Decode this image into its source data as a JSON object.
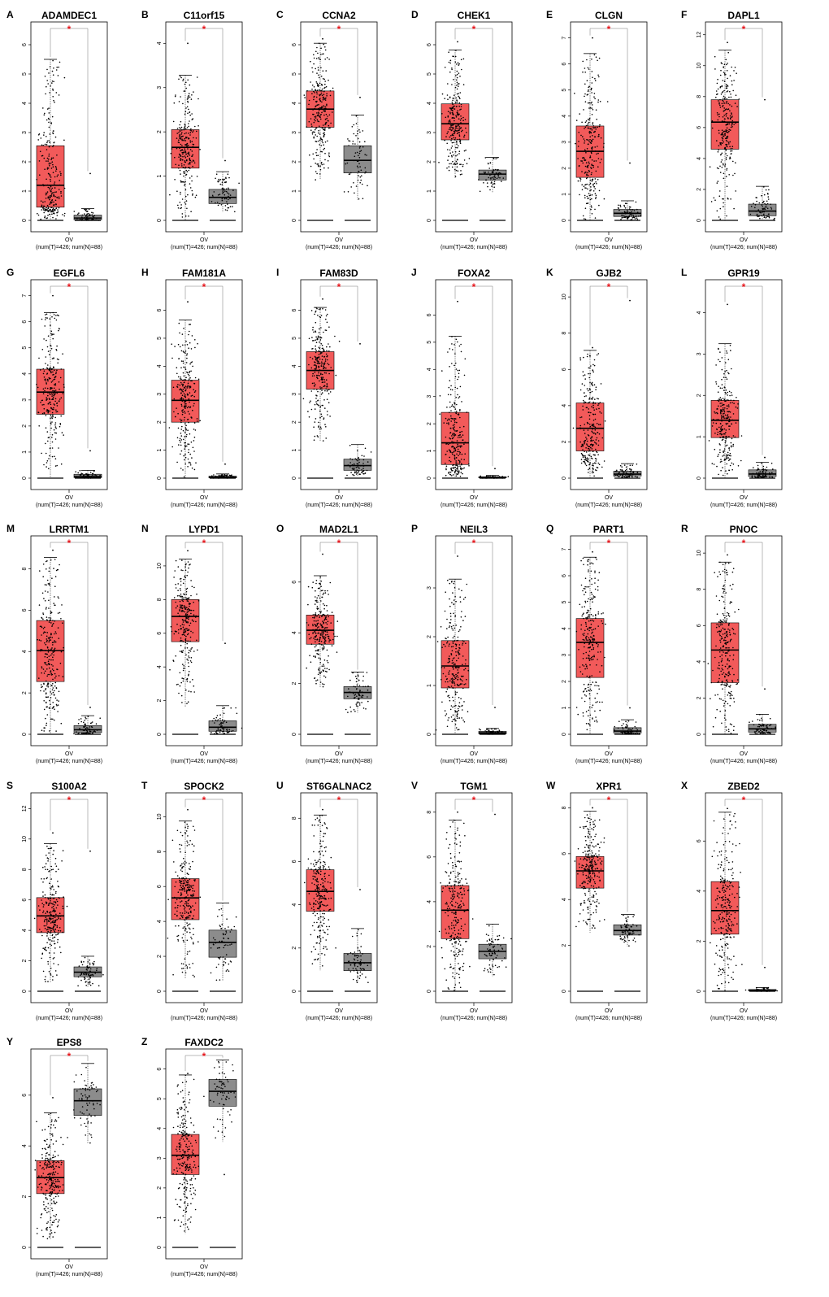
{
  "colors": {
    "tumor": "#f25a5a",
    "normal": "#8c8c8c",
    "significance": "#e8151b",
    "axis": "#000000",
    "point": "#000000"
  },
  "figure": {
    "x_group_label": "OV",
    "x_count_label": "(num(T)=426; num(N)=88)",
    "significance_mark": "*"
  },
  "chart_data": [
    {
      "type": "box",
      "panel": "A",
      "title": "ADAMDEC1",
      "ylim": [
        0,
        6.5
      ],
      "yticks": [
        0,
        1,
        2,
        3,
        4,
        5,
        6
      ],
      "tumor": {
        "min": 0,
        "q1": 0.45,
        "median": 1.2,
        "q3": 2.55,
        "whisker_high": 5.5
      },
      "normal": {
        "min": 0,
        "q1": 0.02,
        "median": 0.08,
        "q3": 0.18,
        "whisker_high": 0.4,
        "outlier_max": 1.6
      }
    },
    {
      "type": "box",
      "panel": "B",
      "title": "C11orf15",
      "ylim": [
        0,
        4.3
      ],
      "yticks": [
        0,
        1,
        2,
        3,
        4
      ],
      "tumor": {
        "min": 0,
        "q1": 1.18,
        "median": 1.65,
        "q3": 2.05,
        "whisker_high": 3.28,
        "outlier_max": 4.0
      },
      "normal": {
        "min": 0.18,
        "q1": 0.38,
        "median": 0.52,
        "q3": 0.7,
        "whisker_high": 1.1,
        "outlier_max": 1.35
      }
    },
    {
      "type": "box",
      "panel": "C",
      "title": "CCNA2",
      "ylim": [
        0,
        6.5
      ],
      "yticks": [
        0,
        1,
        2,
        3,
        4,
        5,
        6
      ],
      "tumor": {
        "min": 1.38,
        "q1": 3.18,
        "median": 3.8,
        "q3": 4.42,
        "whisker_high": 6.05,
        "outlier_max": 6.2
      },
      "normal": {
        "min": 0.7,
        "q1": 1.62,
        "median": 2.05,
        "q3": 2.55,
        "whisker_high": 3.6,
        "outlier_max": 4.2
      }
    },
    {
      "type": "box",
      "panel": "D",
      "title": "CHEK1",
      "ylim": [
        0,
        6.5
      ],
      "yticks": [
        0,
        1,
        2,
        3,
        4,
        5,
        6
      ],
      "tumor": {
        "min": 1.45,
        "q1": 2.75,
        "median": 3.3,
        "q3": 3.98,
        "whisker_high": 5.82,
        "outlier_max": 6.1
      },
      "normal": {
        "min": 0.95,
        "q1": 1.38,
        "median": 1.58,
        "q3": 1.72,
        "whisker_high": 2.15
      }
    },
    {
      "type": "box",
      "panel": "E",
      "title": "CLGN",
      "ylim": [
        0,
        7.3
      ],
      "yticks": [
        0,
        1,
        2,
        3,
        4,
        5,
        6,
        7
      ],
      "tumor": {
        "min": 0,
        "q1": 1.65,
        "median": 2.65,
        "q3": 3.62,
        "whisker_high": 6.4,
        "outlier_max": 7.0
      },
      "normal": {
        "min": 0.02,
        "q1": 0.15,
        "median": 0.27,
        "q3": 0.42,
        "whisker_high": 0.75,
        "outlier_max": 2.2
      }
    },
    {
      "type": "box",
      "panel": "F",
      "title": "DAPL1",
      "ylim": [
        0,
        12.3
      ],
      "yticks": [
        0,
        2,
        4,
        6,
        8,
        10,
        12
      ],
      "tumor": {
        "min": 0,
        "q1": 4.6,
        "median": 6.35,
        "q3": 7.8,
        "whisker_high": 11.0,
        "outlier_max": 11.5
      },
      "normal": {
        "min": 0.05,
        "q1": 0.3,
        "median": 0.6,
        "q3": 1.05,
        "whisker_high": 2.2,
        "outlier_max": 7.8
      }
    },
    {
      "type": "box",
      "panel": "G",
      "title": "EGFL6",
      "ylim": [
        0,
        7.3
      ],
      "yticks": [
        0,
        1,
        2,
        3,
        4,
        5,
        6,
        7
      ],
      "tumor": {
        "min": 0,
        "q1": 2.45,
        "median": 3.3,
        "q3": 4.18,
        "whisker_high": 6.35,
        "outlier_max": 7.0
      },
      "normal": {
        "min": 0,
        "q1": 0.02,
        "median": 0.06,
        "q3": 0.15,
        "whisker_high": 0.3,
        "outlier_max": 1.05
      }
    },
    {
      "type": "box",
      "panel": "H",
      "title": "FAM181A",
      "ylim": [
        0,
        6.8
      ],
      "yticks": [
        0,
        1,
        2,
        3,
        4,
        5,
        6
      ],
      "tumor": {
        "min": 0,
        "q1": 2.0,
        "median": 2.78,
        "q3": 3.5,
        "whisker_high": 5.65,
        "outlier_max": 6.3
      },
      "normal": {
        "min": 0,
        "q1": 0.01,
        "median": 0.03,
        "q3": 0.07,
        "whisker_high": 0.15,
        "outlier_max": 0.5
      }
    },
    {
      "type": "box",
      "panel": "I",
      "title": "FAM83D",
      "ylim": [
        0,
        6.8
      ],
      "yticks": [
        0,
        1,
        2,
        3,
        4,
        5,
        6
      ],
      "tumor": {
        "min": 1.3,
        "q1": 3.18,
        "median": 3.85,
        "q3": 4.52,
        "whisker_high": 6.1,
        "outlier_max": 6.4
      },
      "normal": {
        "min": 0.05,
        "q1": 0.28,
        "median": 0.45,
        "q3": 0.68,
        "whisker_high": 1.2,
        "outlier_max": 4.8
      }
    },
    {
      "type": "box",
      "panel": "J",
      "title": "FOXA2",
      "ylim": [
        0,
        7.0
      ],
      "yticks": [
        0,
        1,
        2,
        3,
        4,
        5,
        6
      ],
      "tumor": {
        "min": 0,
        "q1": 0.5,
        "median": 1.3,
        "q3": 2.42,
        "whisker_high": 5.22,
        "outlier_max": 6.5
      },
      "normal": {
        "min": 0,
        "q1": 0.01,
        "median": 0.03,
        "q3": 0.05,
        "whisker_high": 0.1,
        "outlier_max": 0.35
      }
    },
    {
      "type": "box",
      "panel": "K",
      "title": "GJB2",
      "ylim": [
        0,
        10.5
      ],
      "yticks": [
        0,
        2,
        4,
        6,
        8,
        10
      ],
      "tumor": {
        "min": 0,
        "q1": 1.5,
        "median": 2.75,
        "q3": 4.15,
        "whisker_high": 7.05,
        "outlier_max": 7.2
      },
      "normal": {
        "min": 0.02,
        "q1": 0.12,
        "median": 0.22,
        "q3": 0.38,
        "whisker_high": 0.8,
        "outlier_max": 9.8
      }
    },
    {
      "type": "box",
      "panel": "L",
      "title": "GPR19",
      "ylim": [
        0,
        4.6
      ],
      "yticks": [
        0,
        1,
        2,
        3,
        4
      ],
      "tumor": {
        "min": 0,
        "q1": 0.98,
        "median": 1.4,
        "q3": 1.88,
        "whisker_high": 3.25,
        "outlier_max": 4.2
      },
      "normal": {
        "min": 0,
        "q1": 0.04,
        "median": 0.1,
        "q3": 0.2,
        "whisker_high": 0.38,
        "outlier_max": 0.5
      }
    },
    {
      "type": "box",
      "panel": "M",
      "title": "LRRTM1",
      "ylim": [
        0,
        9.2
      ],
      "yticks": [
        0,
        2,
        4,
        6,
        8
      ],
      "tumor": {
        "min": 0,
        "q1": 2.55,
        "median": 4.05,
        "q3": 5.5,
        "whisker_high": 8.55,
        "outlier_max": 8.9
      },
      "normal": {
        "min": 0,
        "q1": 0.08,
        "median": 0.22,
        "q3": 0.42,
        "whisker_high": 0.9,
        "outlier_max": 1.3
      }
    },
    {
      "type": "box",
      "panel": "N",
      "title": "LYPD1",
      "ylim": [
        0,
        11.3
      ],
      "yticks": [
        0,
        2,
        4,
        6,
        8,
        10
      ],
      "tumor": {
        "min": 1.6,
        "q1": 5.5,
        "median": 7.0,
        "q3": 8.0,
        "whisker_high": 10.4,
        "outlier_max": 10.9
      },
      "normal": {
        "min": 0,
        "q1": 0.18,
        "median": 0.42,
        "q3": 0.8,
        "whisker_high": 1.7,
        "outlier_max": 5.4
      }
    },
    {
      "type": "box",
      "panel": "O",
      "title": "MAD2L1",
      "ylim": [
        0,
        7.5
      ],
      "yticks": [
        0,
        2,
        4,
        6
      ],
      "tumor": {
        "min": 1.85,
        "q1": 3.55,
        "median": 4.1,
        "q3": 4.7,
        "whisker_high": 6.25,
        "outlier_max": 7.1
      },
      "normal": {
        "min": 0.85,
        "q1": 1.4,
        "median": 1.65,
        "q3": 1.88,
        "whisker_high": 2.45
      }
    },
    {
      "type": "box",
      "panel": "P",
      "title": "NEIL3",
      "ylim": [
        0,
        3.9
      ],
      "yticks": [
        0,
        1,
        2,
        3
      ],
      "tumor": {
        "min": 0,
        "q1": 0.95,
        "median": 1.4,
        "q3": 1.92,
        "whisker_high": 3.18,
        "outlier_max": 3.65
      },
      "normal": {
        "min": 0,
        "q1": 0.01,
        "median": 0.03,
        "q3": 0.06,
        "whisker_high": 0.12,
        "outlier_max": 0.55
      }
    },
    {
      "type": "box",
      "panel": "Q",
      "title": "PART1",
      "ylim": [
        0,
        7.2
      ],
      "yticks": [
        0,
        1,
        2,
        3,
        4,
        5,
        6,
        7
      ],
      "tumor": {
        "min": 0,
        "q1": 2.15,
        "median": 3.48,
        "q3": 4.38,
        "whisker_high": 6.7,
        "outlier_max": 6.9
      },
      "normal": {
        "min": 0,
        "q1": 0.05,
        "median": 0.12,
        "q3": 0.25,
        "whisker_high": 0.55,
        "outlier_max": 1.0
      }
    },
    {
      "type": "box",
      "panel": "R",
      "title": "PNOC",
      "ylim": [
        0,
        10.5
      ],
      "yticks": [
        0,
        2,
        4,
        6,
        8,
        10
      ],
      "tumor": {
        "min": 0,
        "q1": 2.85,
        "median": 4.65,
        "q3": 6.15,
        "whisker_high": 9.5,
        "outlier_max": 9.9
      },
      "normal": {
        "min": 0,
        "q1": 0.12,
        "median": 0.3,
        "q3": 0.55,
        "whisker_high": 1.1,
        "outlier_max": 2.5
      }
    },
    {
      "type": "box",
      "panel": "S",
      "title": "S100A2",
      "ylim": [
        0,
        12.5
      ],
      "yticks": [
        0,
        2,
        4,
        6,
        8,
        10,
        12
      ],
      "tumor": {
        "min": 0.6,
        "q1": 3.85,
        "median": 4.95,
        "q3": 6.15,
        "whisker_high": 9.7,
        "outlier_max": 10.4
      },
      "normal": {
        "min": 0.3,
        "q1": 0.95,
        "median": 1.25,
        "q3": 1.6,
        "whisker_high": 2.3,
        "outlier_max": 9.2
      }
    },
    {
      "type": "box",
      "panel": "T",
      "title": "SPOCK2",
      "ylim": [
        0,
        10.9
      ],
      "yticks": [
        0,
        2,
        4,
        6,
        8,
        10
      ],
      "tumor": {
        "min": 0.75,
        "q1": 4.1,
        "median": 5.35,
        "q3": 6.45,
        "whisker_high": 9.75,
        "outlier_max": 10.4
      },
      "normal": {
        "min": 0.6,
        "q1": 1.95,
        "median": 2.8,
        "q3": 3.5,
        "whisker_high": 5.05
      }
    },
    {
      "type": "box",
      "panel": "U",
      "title": "ST6GALNAC2",
      "ylim": [
        0,
        8.8
      ],
      "yticks": [
        0,
        2,
        4,
        6,
        8
      ],
      "tumor": {
        "min": 0.95,
        "q1": 3.7,
        "median": 4.62,
        "q3": 5.62,
        "whisker_high": 8.15,
        "outlier_max": 8.4
      },
      "normal": {
        "min": 0.4,
        "q1": 0.95,
        "median": 1.32,
        "q3": 1.75,
        "whisker_high": 2.9,
        "outlier_max": 4.7
      }
    },
    {
      "type": "box",
      "panel": "V",
      "title": "TGM1",
      "ylim": [
        0,
        8.5
      ],
      "yticks": [
        0,
        2,
        4,
        6,
        8
      ],
      "tumor": {
        "min": 0,
        "q1": 2.35,
        "median": 3.62,
        "q3": 4.72,
        "whisker_high": 7.65,
        "outlier_max": 8.0
      },
      "normal": {
        "min": 0.65,
        "q1": 1.45,
        "median": 1.78,
        "q3": 2.1,
        "whisker_high": 3.0,
        "outlier_max": 7.9
      }
    },
    {
      "type": "box",
      "panel": "W",
      "title": "XPR1",
      "ylim": [
        0,
        8.3
      ],
      "yticks": [
        0,
        2,
        4,
        6,
        8
      ],
      "tumor": {
        "min": 2.55,
        "q1": 4.5,
        "median": 5.25,
        "q3": 5.88,
        "whisker_high": 7.85,
        "outlier_max": 8.0
      },
      "normal": {
        "min": 1.95,
        "q1": 2.45,
        "median": 2.65,
        "q3": 2.9,
        "whisker_high": 3.35
      }
    },
    {
      "type": "box",
      "panel": "X",
      "title": "ZBED2",
      "ylim": [
        0,
        7.6
      ],
      "yticks": [
        0,
        2,
        4,
        6
      ],
      "tumor": {
        "min": 0,
        "q1": 2.28,
        "median": 3.22,
        "q3": 4.38,
        "whisker_high": 7.15,
        "outlier_max": 7.3
      },
      "normal": {
        "min": 0,
        "q1": 0.01,
        "median": 0.03,
        "q3": 0.07,
        "whisker_high": 0.15,
        "outlier_max": 0.95
      }
    },
    {
      "type": "box",
      "panel": "Y",
      "title": "EPS8",
      "ylim": [
        0,
        7.5
      ],
      "yticks": [
        0,
        2,
        4,
        6
      ],
      "tumor": {
        "min": 0.3,
        "q1": 2.12,
        "median": 2.75,
        "q3": 3.42,
        "whisker_high": 5.3,
        "outlier_max": 5.9
      },
      "normal": {
        "min": 4.1,
        "q1": 5.2,
        "median": 5.78,
        "q3": 6.25,
        "whisker_high": 7.25
      }
    },
    {
      "type": "box",
      "panel": "Z",
      "title": "FAXDC2",
      "ylim": [
        0,
        6.4
      ],
      "yticks": [
        0,
        1,
        2,
        3,
        4,
        5,
        6
      ],
      "tumor": {
        "min": 0.45,
        "q1": 2.45,
        "median": 3.1,
        "q3": 3.8,
        "whisker_high": 5.8,
        "outlier_max": 5.85
      },
      "normal": {
        "min": 3.55,
        "q1": 4.75,
        "median": 5.25,
        "q3": 5.65,
        "whisker_high": 6.3,
        "outlier_low": 2.45
      }
    }
  ]
}
